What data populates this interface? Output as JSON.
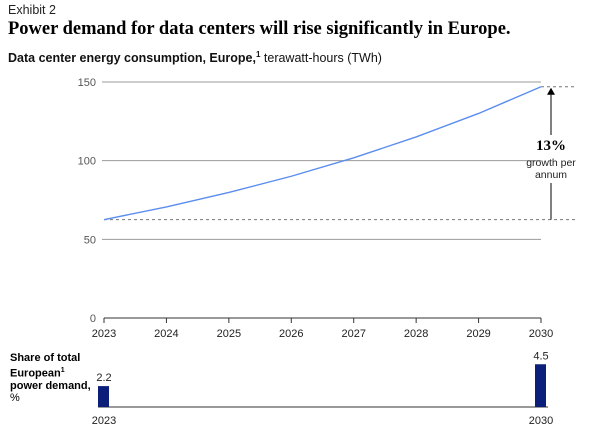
{
  "header": {
    "exhibit": "Exhibit 2",
    "title": "Power demand for data centers will rise significantly in Europe."
  },
  "subtitle": {
    "bold": "Data center energy consumption, Europe,",
    "footnote": "1",
    "unit": " terawatt-hours (TWh)"
  },
  "annotation": {
    "value": "13%",
    "line1": "growth per",
    "line2": "annum"
  },
  "share": {
    "label_bold": "Share of total European",
    "footnote": "1",
    "label_rest": "power demand,",
    "unit": " %"
  },
  "colors": {
    "line": "#5b8def",
    "bar": "#0b1f7a",
    "grid": "#9a9a9a",
    "axis": "#333333"
  },
  "chart_data": [
    {
      "type": "line",
      "title": "Data center energy consumption, Europe, terawatt-hours (TWh)",
      "x": [
        2023,
        2024,
        2025,
        2026,
        2027,
        2028,
        2029,
        2030
      ],
      "series": [
        {
          "values": [
            62.5,
            70.6,
            79.8,
            90.1,
            101.8,
            115.1,
            130.0,
            147.0
          ]
        }
      ],
      "yticks": [
        0,
        50,
        100,
        150
      ],
      "ylim": [
        0,
        150
      ],
      "xlim": [
        2023,
        2030
      ],
      "grid": true
    },
    {
      "type": "bar",
      "title": "Share of total European power demand, %",
      "categories": [
        "2023",
        "2030"
      ],
      "values": [
        2.2,
        4.5
      ]
    }
  ]
}
